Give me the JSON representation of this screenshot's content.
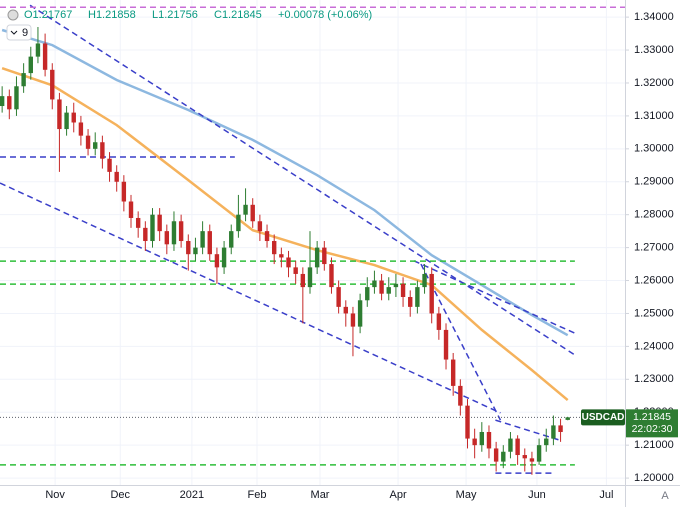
{
  "chart_data": {
    "type": "candlestick",
    "header": [
      "O1.21767",
      "H1.21858",
      "L1.21756",
      "C1.21845",
      "+0.00078 (+0.06%)"
    ],
    "indicator_count": 9,
    "symbol": "USDCAD",
    "countdown": "22:02:30",
    "scale_mode": "A",
    "up_color": "#2e7d32",
    "down_color": "#c62828",
    "candles": {
      "open": [
        1.313,
        1.316,
        1.312,
        1.319,
        1.323,
        1.328,
        1.332,
        1.324,
        1.315,
        1.306,
        1.311,
        1.308,
        1.304,
        1.3,
        1.302,
        1.297,
        1.293,
        1.29,
        1.284,
        1.279,
        1.276,
        1.272,
        1.28,
        1.275,
        1.271,
        1.278,
        1.272,
        1.268,
        1.27,
        1.275,
        1.268,
        1.264,
        1.27,
        1.275,
        1.28,
        1.283,
        1.278,
        1.275,
        1.272,
        1.268,
        1.267,
        1.264,
        1.262,
        1.258,
        1.264,
        1.27,
        1.265,
        1.258,
        1.252,
        1.25,
        1.246,
        1.254,
        1.258,
        1.26,
        1.256,
        1.258,
        1.259,
        1.255,
        1.252,
        1.258,
        1.262,
        1.25,
        1.245,
        1.236,
        1.228,
        1.222,
        1.212,
        1.21,
        1.214,
        1.209,
        1.205,
        1.208,
        1.212,
        1.207,
        1.206,
        1.205,
        1.21,
        1.212,
        1.216,
        1.21767
      ],
      "high": [
        1.319,
        1.318,
        1.322,
        1.326,
        1.331,
        1.337,
        1.335,
        1.326,
        1.317,
        1.313,
        1.314,
        1.31,
        1.306,
        1.305,
        1.304,
        1.299,
        1.295,
        1.292,
        1.286,
        1.281,
        1.278,
        1.282,
        1.282,
        1.277,
        1.281,
        1.28,
        1.274,
        1.273,
        1.278,
        1.277,
        1.27,
        1.272,
        1.277,
        1.286,
        1.288,
        1.285,
        1.28,
        1.277,
        1.274,
        1.27,
        1.269,
        1.266,
        1.264,
        1.275,
        1.272,
        1.272,
        1.267,
        1.26,
        1.254,
        1.252,
        1.256,
        1.261,
        1.263,
        1.262,
        1.261,
        1.262,
        1.261,
        1.257,
        1.26,
        1.265,
        1.264,
        1.252,
        1.247,
        1.238,
        1.23,
        1.224,
        1.215,
        1.217,
        1.216,
        1.211,
        1.21,
        1.214,
        1.213,
        1.209,
        1.208,
        1.212,
        1.215,
        1.219,
        1.218,
        1.21858
      ],
      "low": [
        1.311,
        1.309,
        1.31,
        1.317,
        1.321,
        1.326,
        1.322,
        1.312,
        1.293,
        1.304,
        1.305,
        1.301,
        1.298,
        1.298,
        1.294,
        1.29,
        1.287,
        1.281,
        1.276,
        1.273,
        1.269,
        1.27,
        1.272,
        1.268,
        1.269,
        1.27,
        1.263,
        1.266,
        1.268,
        1.266,
        1.259,
        1.262,
        1.268,
        1.273,
        1.278,
        1.276,
        1.272,
        1.27,
        1.265,
        1.264,
        1.261,
        1.259,
        1.247,
        1.256,
        1.262,
        1.263,
        1.256,
        1.25,
        1.246,
        1.237,
        1.244,
        1.252,
        1.256,
        1.254,
        1.254,
        1.255,
        1.252,
        1.249,
        1.25,
        1.256,
        1.247,
        1.242,
        1.233,
        1.225,
        1.219,
        1.209,
        1.206,
        1.208,
        1.206,
        1.202,
        1.203,
        1.206,
        1.204,
        1.202,
        1.201,
        1.204,
        1.208,
        1.21,
        1.211,
        1.21756
      ],
      "close": [
        1.316,
        1.312,
        1.319,
        1.323,
        1.328,
        1.332,
        1.324,
        1.315,
        1.306,
        1.311,
        1.308,
        1.304,
        1.3,
        1.302,
        1.297,
        1.293,
        1.29,
        1.284,
        1.279,
        1.276,
        1.272,
        1.28,
        1.275,
        1.271,
        1.278,
        1.272,
        1.268,
        1.27,
        1.275,
        1.268,
        1.264,
        1.27,
        1.275,
        1.28,
        1.283,
        1.278,
        1.275,
        1.272,
        1.268,
        1.267,
        1.264,
        1.262,
        1.258,
        1.264,
        1.27,
        1.265,
        1.258,
        1.252,
        1.25,
        1.246,
        1.254,
        1.258,
        1.26,
        1.256,
        1.258,
        1.259,
        1.255,
        1.252,
        1.258,
        1.262,
        1.25,
        1.245,
        1.236,
        1.228,
        1.222,
        1.212,
        1.21,
        1.214,
        1.209,
        1.205,
        1.208,
        1.212,
        1.207,
        1.206,
        1.205,
        1.21,
        1.212,
        1.216,
        1.214,
        1.21845
      ]
    },
    "series": [
      {
        "color": "#f5b25c",
        "x": [
          0,
          7,
          16,
          26,
          35,
          44,
          52,
          60,
          67,
          74,
          79
        ],
        "values": [
          1.3245,
          1.3193,
          1.3072,
          1.2905,
          1.2753,
          1.2692,
          1.2647,
          1.2586,
          1.245,
          1.2328,
          1.2237
        ]
      },
      {
        "color": "#8db8e0",
        "x": [
          0,
          7,
          16,
          26,
          35,
          44,
          52,
          60,
          67,
          74,
          79
        ],
        "values": [
          1.3361,
          1.3315,
          1.3209,
          1.3118,
          1.3027,
          1.292,
          1.2814,
          1.2677,
          1.2586,
          1.2495,
          1.2434
        ]
      }
    ],
    "trend_lines": [
      {
        "color": "#3a3fc9",
        "x": [
          -0.3,
          69.6
        ],
        "y": [
          1.2896,
          1.2198
        ]
      },
      {
        "color": "#3a3fc9",
        "x": [
          3.9,
          80
        ],
        "y": [
          1.3436,
          1.2374
        ]
      },
      {
        "color": "#3a3fc9",
        "x": [
          57.5,
          80
        ],
        "y": [
          1.266,
          1.244
        ]
      },
      {
        "color": "#3a3fc9",
        "x": [
          58.5,
          69.6
        ],
        "y": [
          1.265,
          1.2176
        ]
      },
      {
        "color": "#3a3fc9",
        "x": [
          68.9,
          77.9
        ],
        "y": [
          1.2176,
          1.2115
        ]
      },
      {
        "color": "#3a3fc9",
        "x": [
          68.9,
          77.2
        ],
        "y": [
          1.2015,
          1.2015
        ]
      },
      {
        "color": "#3a3fc9",
        "x": [
          -0.3,
          32.5
        ],
        "y": [
          1.2975,
          1.2975
        ]
      },
      {
        "color": "#2fbf3a",
        "x": [
          -0.3,
          80
        ],
        "y": [
          1.2659,
          1.2659
        ]
      },
      {
        "color": "#2fbf3a",
        "x": [
          -0.3,
          80
        ],
        "y": [
          1.2589,
          1.2589
        ]
      },
      {
        "color": "#2fbf3a",
        "x": [
          -0.3,
          80
        ],
        "y": [
          1.204,
          1.204
        ]
      },
      {
        "color": "#c86dd7",
        "x": [
          -0.3,
          87
        ],
        "y": [
          1.343,
          1.343
        ]
      }
    ],
    "xlim": [
      -0.3,
      87
    ],
    "ylim": [
      1.1979,
      1.3452
    ],
    "xticks": [
      {
        "value": 7.4,
        "label": "Nov"
      },
      {
        "value": 16.5,
        "label": "Dec"
      },
      {
        "value": 26.5,
        "label": "2021"
      },
      {
        "value": 35.6,
        "label": "Feb"
      },
      {
        "value": 44.4,
        "label": "Mar"
      },
      {
        "value": 55.3,
        "label": "Apr"
      },
      {
        "value": 64.8,
        "label": "May"
      },
      {
        "value": 74.7,
        "label": "Jun"
      },
      {
        "value": 84.4,
        "label": "Jul"
      }
    ],
    "yticks": [
      {
        "value": 1.2,
        "label": "1.20000"
      },
      {
        "value": 1.21,
        "label": "1.21000"
      },
      {
        "value": 1.22,
        "label": "1.22000"
      },
      {
        "value": 1.23,
        "label": "1.23000"
      },
      {
        "value": 1.24,
        "label": "1.24000"
      },
      {
        "value": 1.25,
        "label": "1.25000"
      },
      {
        "value": 1.26,
        "label": "1.26000"
      },
      {
        "value": 1.27,
        "label": "1.27000"
      },
      {
        "value": 1.28,
        "label": "1.28000"
      },
      {
        "value": 1.29,
        "label": "1.29000"
      },
      {
        "value": 1.3,
        "label": "1.30000"
      },
      {
        "value": 1.31,
        "label": "1.31000"
      },
      {
        "value": 1.32,
        "label": "1.32000"
      },
      {
        "value": 1.33,
        "label": "1.33000"
      },
      {
        "value": 1.34,
        "label": "1.34000"
      }
    ]
  }
}
